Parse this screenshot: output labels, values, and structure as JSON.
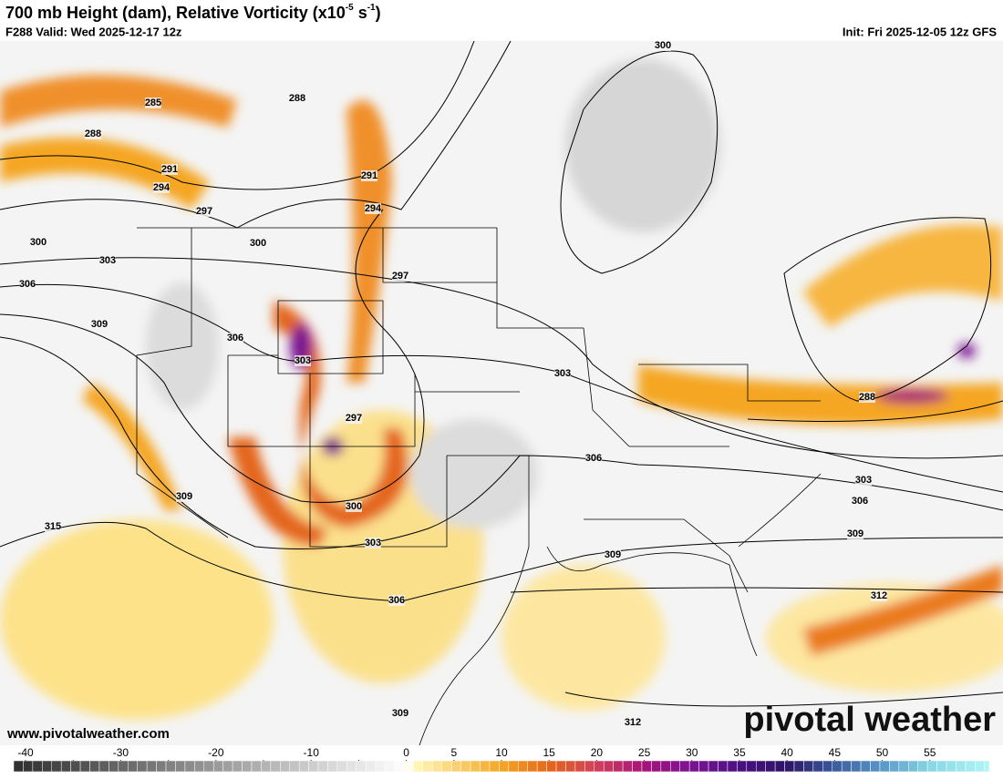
{
  "header": {
    "title_parts": [
      "700 mb Height (dam), Relative Vorticity (x10",
      "-5",
      " s",
      "-1",
      ")"
    ],
    "valid": "F288 Valid: Wed 2025-12-17 12z",
    "init": "Init: Fri 2025-12-05 12z GFS"
  },
  "map": {
    "contour_labels": [
      300,
      285,
      288,
      288,
      291,
      291,
      294,
      294,
      297,
      300,
      300,
      303,
      297,
      306,
      309,
      306,
      303,
      303,
      288,
      297,
      306,
      303,
      300,
      306,
      309,
      315,
      303,
      309,
      309,
      312,
      306,
      309,
      312
    ],
    "website": "www.pivotalweather.com",
    "logo": "pivotal weather"
  },
  "colorbar": {
    "lim": [
      -41.25,
      61.25
    ],
    "ticks": [
      -40,
      -35,
      -30,
      -25,
      -20,
      -15,
      -10,
      -5,
      0,
      5,
      10,
      15,
      20,
      25,
      30,
      35,
      40,
      45,
      50,
      55
    ],
    "tick_labels": [
      "-40",
      "-30",
      "-20",
      "-10",
      "0",
      "5",
      "10",
      "15",
      "20",
      "25",
      "30",
      "35",
      "40",
      "45",
      "50",
      "55"
    ],
    "stops": [
      {
        "value": -41.25,
        "color": "#2e2e2e"
      },
      {
        "value": 0,
        "color": "#ffffff"
      },
      {
        "value": 1,
        "color": "#fff7b8"
      },
      {
        "value": 10,
        "color": "#f5a623"
      },
      {
        "value": 15,
        "color": "#e4661a"
      },
      {
        "value": 20,
        "color": "#d0405a"
      },
      {
        "value": 25,
        "color": "#a6127a"
      },
      {
        "value": 30,
        "color": "#7a1492"
      },
      {
        "value": 35,
        "color": "#4c1080"
      },
      {
        "value": 40,
        "color": "#2c1466"
      },
      {
        "value": 45,
        "color": "#3a5c9c"
      },
      {
        "value": 50,
        "color": "#5a98c8"
      },
      {
        "value": 55,
        "color": "#88d6e4"
      },
      {
        "value": 61.25,
        "color": "#b0f6f6"
      }
    ]
  }
}
